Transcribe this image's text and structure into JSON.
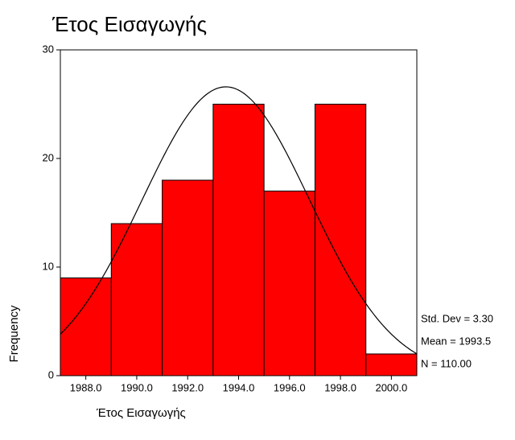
{
  "chart_data": {
    "type": "histogram",
    "title": "Έτος Εισαγωγής",
    "x_label": "Έτος Εισαγωγής",
    "y_label": "Frequency",
    "bins": [
      1987,
      1989,
      1991,
      1993,
      1995,
      1997,
      1999,
      2001
    ],
    "values": [
      9,
      14,
      18,
      25,
      17,
      25,
      2
    ],
    "color": "#ff0000",
    "xlim": [
      1987,
      2001
    ],
    "xticks": [
      {
        "value": 1988,
        "label": "1988.0"
      },
      {
        "value": 1990,
        "label": "1990.0"
      },
      {
        "value": 1992,
        "label": "1992.0"
      },
      {
        "value": 1994,
        "label": "1994.0"
      },
      {
        "value": 1996,
        "label": "1996.0"
      },
      {
        "value": 1998,
        "label": "1998.0"
      },
      {
        "value": 2000,
        "label": "2000.0"
      }
    ],
    "ylim": [
      0,
      30
    ],
    "yticks": [
      0,
      10,
      20,
      30
    ],
    "normal_curve": {
      "mean": 1993.5,
      "std_dev": 3.3,
      "n": 110
    },
    "stats": [
      "Std. Dev = 3.30",
      "Mean = 1993.5",
      "N = 110.00"
    ]
  }
}
